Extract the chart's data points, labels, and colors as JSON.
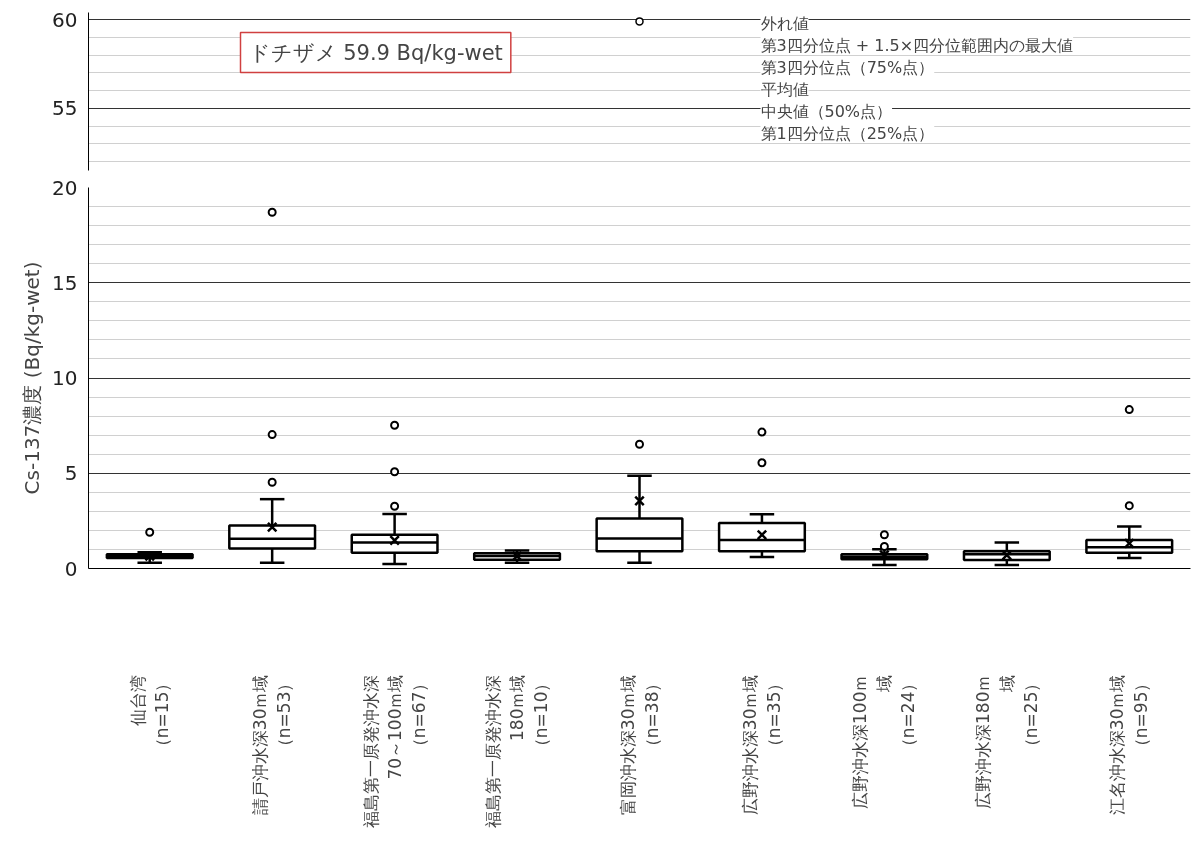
{
  "chart_data": [
    {
      "type": "scatter",
      "categories": [
        "仙台湾（n=15）",
        "請戸沖水深30ｍ域（n=53）",
        "福島第一原発沖水深70～100ｍ域（n=67）",
        "福島第一原発沖水深180ｍ域（n=10）",
        "富岡沖水深30ｍ域（n=38）",
        "広野沖水深30ｍ域（n=35）",
        "広野沖水深100ｍ域（n=24）",
        "広野沖水深180ｍ域（n=25）",
        "江名沖水深30ｍ域（n=95）"
      ],
      "series": [
        {
          "color": "#000000",
          "values": [
            null,
            null,
            null,
            null,
            59.9,
            null,
            null,
            null,
            null
          ]
        }
      ],
      "marker": "circle",
      "ylim": [
        51.5,
        60.4
      ],
      "yticks": [
        {
          "value": 52,
          "label": null
        },
        {
          "value": 53,
          "label": null
        },
        {
          "value": 54,
          "label": null
        },
        55,
        {
          "value": 56,
          "label": null
        },
        {
          "value": 57,
          "label": null
        },
        {
          "value": 58,
          "label": null
        },
        {
          "value": 59,
          "label": null
        },
        60
      ],
      "grid": "y",
      "tick_labels": "y",
      "annotations": [
        "ドチザメ 59.9 Bq/kg-wet",
        "外れ値",
        "第3四分位点 + 1.5×四分位範囲内の最大値",
        "第3四分位点（75%点）",
        "平均値",
        "中央値（50%点）",
        "第1四分位点（25%点）"
      ]
    },
    {
      "type": "box",
      "categories": [
        "仙台湾（n=15）",
        "請戸沖水深30ｍ域（n=53）",
        "福島第一原発沖水深70～100ｍ域（n=67）",
        "福島第一原発沖水深180ｍ域（n=10）",
        "富岡沖水深30ｍ域（n=38）",
        "広野沖水深30ｍ域（n=35）",
        "広野沖水深100ｍ域（n=24）",
        "広野沖水深180ｍ域（n=25）",
        "江名沖水深30ｍ域（n=95）"
      ],
      "ylabel": "Cs-137濃度 (Bq/kg-wet)",
      "ylim": [
        0,
        20
      ],
      "yticks": [
        0,
        {
          "value": 1,
          "label": null
        },
        {
          "value": 2,
          "label": null
        },
        {
          "value": 3,
          "label": null
        },
        {
          "value": 4,
          "label": null
        },
        5,
        {
          "value": 6,
          "label": null
        },
        {
          "value": 7,
          "label": null
        },
        {
          "value": 8,
          "label": null
        },
        {
          "value": 9,
          "label": null
        },
        10,
        {
          "value": 11,
          "label": null
        },
        {
          "value": 12,
          "label": null
        },
        {
          "value": 13,
          "label": null
        },
        {
          "value": 14,
          "label": null
        },
        15,
        {
          "value": 16,
          "label": null
        },
        {
          "value": 17,
          "label": null
        },
        {
          "value": 18,
          "label": null
        },
        {
          "value": 19,
          "label": null
        },
        20
      ],
      "grid": "y",
      "boxes": [
        {
          "low": 0.3,
          "q1": 0.55,
          "median": 0.65,
          "q3": 0.75,
          "high": 0.85,
          "mean": 0.65,
          "outliers": [
            1.9
          ]
        },
        {
          "low": 0.3,
          "q1": 1.05,
          "median": 1.56,
          "q3": 2.26,
          "high": 3.64,
          "mean": 2.17,
          "outliers": [
            4.53,
            7.03,
            18.7
          ]
        },
        {
          "low": 0.24,
          "q1": 0.83,
          "median": 1.36,
          "q3": 1.77,
          "high": 2.86,
          "mean": 1.48,
          "outliers": [
            3.27,
            5.08,
            7.52
          ]
        },
        {
          "low": 0.3,
          "q1": 0.46,
          "median": 0.65,
          "q3": 0.8,
          "high": 0.95,
          "mean": 0.65
        },
        {
          "low": 0.3,
          "q1": 0.91,
          "median": 1.57,
          "q3": 2.63,
          "high": 4.87,
          "mean": 3.55,
          "outliers": [
            6.52
          ]
        },
        {
          "low": 0.6,
          "q1": 0.91,
          "median": 1.5,
          "q3": 2.39,
          "high": 2.85,
          "mean": 1.77,
          "outliers": [
            5.55,
            7.16
          ]
        },
        {
          "low": 0.18,
          "q1": 0.48,
          "median": 0.62,
          "q3": 0.75,
          "high": 1.01,
          "mean": 0.72,
          "outliers": [
            1.16,
            1.77
          ]
        },
        {
          "low": 0.18,
          "q1": 0.45,
          "median": 0.75,
          "q3": 0.9,
          "high": 1.36,
          "mean": 0.7
        },
        {
          "low": 0.55,
          "q1": 0.83,
          "median": 1.12,
          "q3": 1.5,
          "high": 2.2,
          "mean": 1.32,
          "outliers": [
            3.3,
            8.34
          ]
        }
      ]
    }
  ]
}
